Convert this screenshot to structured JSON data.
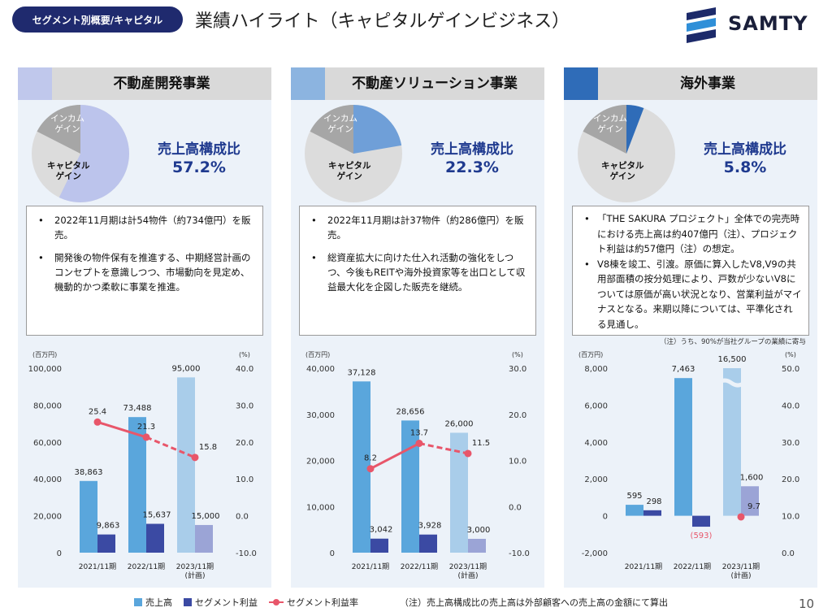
{
  "header": {
    "segment_tag": "セグメント別概要/キャピタル",
    "title": "業績ハイライト（キャピタルゲインビジネス）",
    "logo_text": "SAMTY",
    "page_number": "10"
  },
  "colors": {
    "sales_bar": "#5aa6dc",
    "sales_bar_plan": "#a9cdea",
    "profit_bar": "#3b4aa3",
    "profit_bar_plan": "#9ba4d6",
    "rate_line": "#e8566a",
    "pie_income": "#a6a6a6",
    "pie_capital_light": "#dcdcdc",
    "navy": "#1f2a6e",
    "accent_text": "#1f3a8f"
  },
  "panels": [
    {
      "title": "不動産開発事業",
      "accent_color": "#c0c8ec",
      "pie_slice_color": "#bcc4ec",
      "pie_share": 57.2,
      "ratio_label": "売上高構成比",
      "ratio_value": "57.2%",
      "pie_income_label": "インカム\nゲイン",
      "pie_capital_label": "キャピタル\nゲイン",
      "bullets": [
        "2022年11月期は計54物件（約734億円）を販売。",
        "開発後の物件保有を推進する、中期経営計画のコンセプトを意識しつつ、市場動向を見定め、機動的かつ柔軟に事業を推進。"
      ]
    },
    {
      "title": "不動産ソリューション事業",
      "accent_color": "#8cb4e0",
      "pie_slice_color": "#6f9fd8",
      "pie_share": 22.3,
      "ratio_label": "売上高構成比",
      "ratio_value": "22.3%",
      "pie_income_label": "インカム\nゲイン",
      "pie_capital_label": "キャピタル\nゲイン",
      "bullets": [
        "2022年11月期は計37物件（約286億円）を販売。",
        "総資産拡大に向けた仕入れ活動の強化をしつつ、今後もREITや海外投資家等を出口として収益最大化を企図した販売を継続。"
      ]
    },
    {
      "title": "海外事業",
      "accent_color": "#2f6cb8",
      "pie_slice_color": "#2f6cb8",
      "pie_share": 5.8,
      "ratio_label": "売上高構成比",
      "ratio_value": "5.8%",
      "pie_income_label": "インカム\nゲイン",
      "pie_capital_label": "キャピタル\nゲイン",
      "bullets": [
        "「THE SAKURA プロジェクト」全体での完売時における売上高は約407億円（注）、プロジェクト利益は約57億円（注）の想定。",
        "V8棟を竣工、引渡。原価に算入したV8,V9の共用部面積の按分処理により、戸数が少ないV8については原価が高い状況となり、営業利益がマイナスとなる。来期以降については、平準化される見通し。"
      ],
      "note": "（注）うち、90%が当社グループの業績に寄与"
    }
  ],
  "chart_data": [
    {
      "type": "bar",
      "categories": [
        "2021/11期",
        "2022/11期",
        "2023/11期\n(計画)"
      ],
      "y_unit": "(百万円)",
      "y2_unit": "(%)",
      "ylim": [
        0,
        100000
      ],
      "yticks": [
        0,
        20000,
        40000,
        60000,
        80000,
        100000
      ],
      "ytick_labels": [
        "0",
        "20,000",
        "40,000",
        "60,000",
        "80,000",
        "100,000"
      ],
      "y2ticks": [
        -10,
        0,
        10,
        20,
        30,
        40
      ],
      "y2tick_labels": [
        "-10.0",
        "0.0",
        "10.0",
        "20.0",
        "30.0",
        "40.0"
      ],
      "series": [
        {
          "name": "売上高",
          "values": [
            38863,
            73488,
            95000
          ],
          "labels": [
            "38,863",
            "73,488",
            "95,000"
          ]
        },
        {
          "name": "セグメント利益",
          "values": [
            9863,
            15637,
            15000
          ],
          "labels": [
            "9,863",
            "15,637",
            "15,000"
          ]
        },
        {
          "name": "セグメント利益率",
          "values": [
            25.4,
            21.3,
            15.8
          ],
          "labels": [
            "25.4",
            "21.3",
            "15.8"
          ]
        }
      ]
    },
    {
      "type": "bar",
      "categories": [
        "2021/11期",
        "2022/11期",
        "2023/11期\n(計画)"
      ],
      "y_unit": "(百万円)",
      "y2_unit": "(%)",
      "ylim": [
        0,
        40000
      ],
      "yticks": [
        0,
        10000,
        20000,
        30000,
        40000
      ],
      "ytick_labels": [
        "0",
        "10,000",
        "20,000",
        "30,000",
        "40,000"
      ],
      "y2ticks": [
        -10,
        0,
        10,
        20,
        30
      ],
      "y2tick_labels": [
        "-10.0",
        "0.0",
        "10.0",
        "20.0",
        "30.0"
      ],
      "series": [
        {
          "name": "売上高",
          "values": [
            37128,
            28656,
            26000
          ],
          "labels": [
            "37,128",
            "28,656",
            "26,000"
          ]
        },
        {
          "name": "セグメント利益",
          "values": [
            3042,
            3928,
            3000
          ],
          "labels": [
            "3,042",
            "3,928",
            "3,000"
          ]
        },
        {
          "name": "セグメント利益率",
          "values": [
            8.2,
            13.7,
            11.5
          ],
          "labels": [
            "8.2",
            "13.7",
            "11.5"
          ]
        }
      ]
    },
    {
      "type": "bar",
      "categories": [
        "2021/11期",
        "2022/11期",
        "2023/11期\n(計画)"
      ],
      "y_unit": "(百万円)",
      "y2_unit": "(%)",
      "ylim": [
        -2000,
        8000
      ],
      "yticks": [
        -2000,
        0,
        2000,
        4000,
        6000,
        8000
      ],
      "ytick_labels": [
        "-2,000",
        "0",
        "2,000",
        "4,000",
        "6,000",
        "8,000"
      ],
      "y2ticks": [
        0,
        10,
        20,
        30,
        40,
        50
      ],
      "y2tick_labels": [
        "0.0",
        "10.0",
        "20.0",
        "30.0",
        "40.0",
        "50.0"
      ],
      "axis_break": true,
      "series": [
        {
          "name": "売上高",
          "values": [
            595,
            7463,
            16500
          ],
          "labels": [
            "595",
            "7,463",
            "16,500"
          ]
        },
        {
          "name": "セグメント利益",
          "values": [
            298,
            -593,
            1600
          ],
          "labels": [
            "298",
            "(593)",
            "1,600"
          ]
        },
        {
          "name": "セグメント利益率",
          "values": [
            null,
            null,
            9.7
          ],
          "labels": [
            "",
            "",
            "9.7"
          ]
        }
      ]
    }
  ],
  "legend": {
    "sales": "売上高",
    "profit": "セグメント利益",
    "rate": "セグメント利益率"
  },
  "footnote": "（注）売上高構成比の売上高は外部顧客への売上高の金額にて算出"
}
